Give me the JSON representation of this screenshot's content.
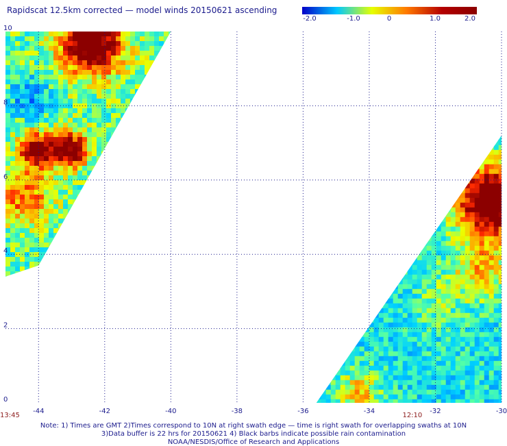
{
  "title": "Rapidscat 12.5km corrected — model winds 20150621 ascending",
  "colorbar": {
    "labels": [
      "-2.0",
      "-1.0",
      "0",
      "1.0",
      "2.0"
    ],
    "min": -2.0,
    "max": 2.0,
    "colors": [
      "#0000c8",
      "#00c8ff",
      "#e6ff00",
      "#ff7800",
      "#b40000",
      "#8b0000"
    ]
  },
  "map": {
    "lon_range": [
      -45,
      -30
    ],
    "lat_range": [
      0,
      10
    ],
    "lon_ticks": [
      "-44",
      "-42",
      "-40",
      "-38",
      "-36",
      "-34",
      "-32",
      "-30"
    ],
    "lat_ticks": [
      "10",
      "8",
      "6",
      "4",
      "2",
      "0"
    ],
    "grid_color": "#1a1a8c",
    "grid_lines": "dotted",
    "pass_times": [
      {
        "label": "13:45",
        "lon": -45
      },
      {
        "label": "12:10",
        "lon": -32
      }
    ],
    "swaths": [
      {
        "name": "left-swath",
        "polygon_lonlat": [
          [
            -45,
            10
          ],
          [
            -40,
            10
          ],
          [
            -44,
            3.7
          ],
          [
            -45,
            3.4
          ]
        ],
        "pattern": "west"
      },
      {
        "name": "right-swath",
        "polygon_lonlat": [
          [
            -35.6,
            0
          ],
          [
            -30,
            0
          ],
          [
            -30,
            7.2
          ]
        ],
        "pattern": "east"
      }
    ]
  },
  "notes": {
    "line1": "Note: 1) Times are GMT 2)Times correspond to 10N at right swath edge — time is right swath for overlapping swaths at 10N",
    "line2": "3)Data buffer is 22 hrs for 20150621 4) Black barbs indicate possible rain contamination",
    "line3": "NOAA/NESDIS/Office of Research and Applications"
  }
}
